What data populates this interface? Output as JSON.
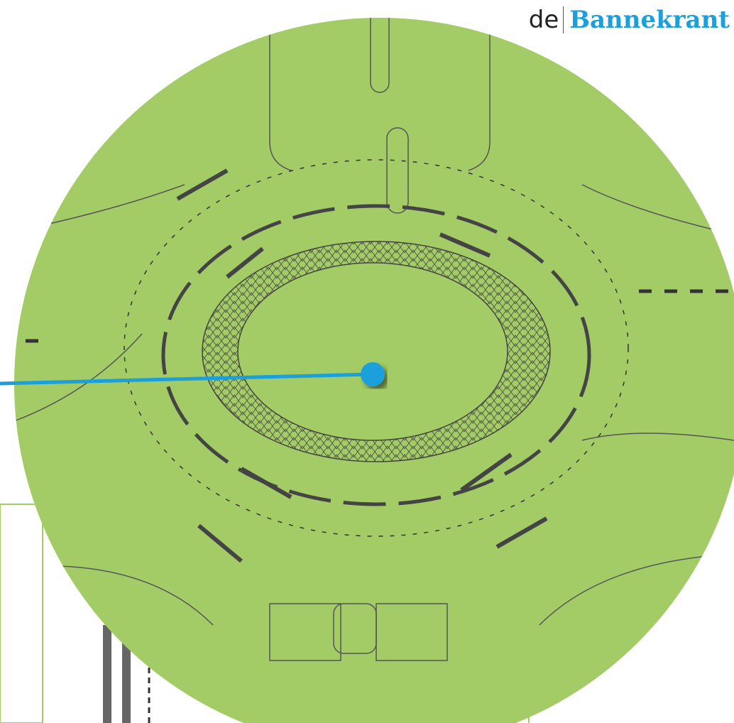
{
  "logo": {
    "prefix": "de",
    "name": "Bannekrant"
  }
}
